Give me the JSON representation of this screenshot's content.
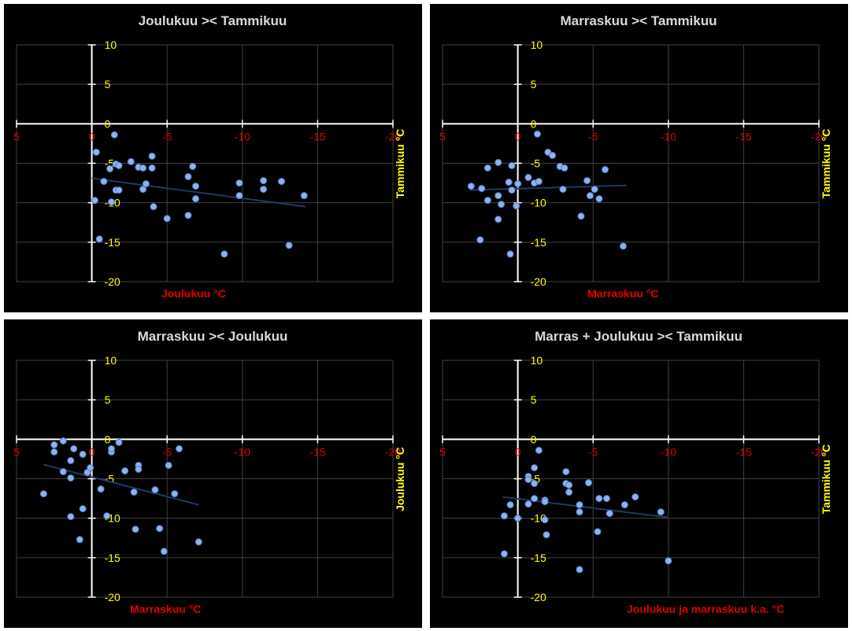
{
  "chart_data": [
    {
      "type": "scatter",
      "title": "Joulukuu >< Tammikuu",
      "xlabel": "Joulukuu °C",
      "ylabel": "Tammikuu °C",
      "xlim": [
        5,
        -20
      ],
      "ylim": [
        -20,
        10
      ],
      "xticks": [
        5,
        0,
        -5,
        -10,
        -15,
        -20
      ],
      "yticks": [
        10,
        5,
        0,
        -5,
        -10,
        -15,
        -20
      ],
      "trendline": {
        "x": [
          0,
          -14.2
        ],
        "y": [
          -6.9,
          -10.5
        ]
      },
      "points": [
        {
          "x": -1.5,
          "y": -1.4
        },
        {
          "x": -0.3,
          "y": -3.6
        },
        {
          "x": -0.8,
          "y": -7.3
        },
        {
          "x": -1.2,
          "y": -5.7
        },
        {
          "x": -1.6,
          "y": -5.1
        },
        {
          "x": -1.8,
          "y": -5.3
        },
        {
          "x": -1.6,
          "y": -8.4
        },
        {
          "x": -1.8,
          "y": -8.4
        },
        {
          "x": -0.2,
          "y": -9.7
        },
        {
          "x": -1.3,
          "y": -9.9
        },
        {
          "x": -2.6,
          "y": -4.8
        },
        {
          "x": -3.1,
          "y": -5.5
        },
        {
          "x": -3.4,
          "y": -5.6
        },
        {
          "x": -3.6,
          "y": -7.6
        },
        {
          "x": -3.4,
          "y": -8.3
        },
        {
          "x": -4.0,
          "y": -4.1
        },
        {
          "x": -4.0,
          "y": -5.6
        },
        {
          "x": -4.1,
          "y": -10.5
        },
        {
          "x": -5.0,
          "y": -12.0
        },
        {
          "x": -0.5,
          "y": -14.6
        },
        {
          "x": -6.4,
          "y": -6.7
        },
        {
          "x": -6.7,
          "y": -5.4
        },
        {
          "x": -6.9,
          "y": -7.9
        },
        {
          "x": -6.9,
          "y": -9.5
        },
        {
          "x": -6.4,
          "y": -11.6
        },
        {
          "x": -8.8,
          "y": -16.5
        },
        {
          "x": -9.8,
          "y": -7.5
        },
        {
          "x": -9.8,
          "y": -9.1
        },
        {
          "x": -11.4,
          "y": -7.2
        },
        {
          "x": -11.4,
          "y": -8.3
        },
        {
          "x": -12.6,
          "y": -7.3
        },
        {
          "x": -13.1,
          "y": -15.4
        },
        {
          "x": -14.1,
          "y": -9.1
        }
      ]
    },
    {
      "type": "scatter",
      "title": "Marraskuu >< Tammikuu",
      "xlabel": "Marraskuu °C",
      "ylabel": "Tammikuu °C",
      "xlim": [
        5,
        -20
      ],
      "ylim": [
        -20,
        10
      ],
      "xticks": [
        5,
        0,
        -5,
        -10,
        -15,
        -20
      ],
      "yticks": [
        10,
        5,
        0,
        -5,
        -10,
        -15,
        -20
      ],
      "trendline": {
        "x": [
          3.2,
          -7.2
        ],
        "y": [
          -8.4,
          -7.8
        ]
      },
      "points": [
        {
          "x": 3.1,
          "y": -7.9
        },
        {
          "x": 2.4,
          "y": -8.2
        },
        {
          "x": 2.5,
          "y": -14.7
        },
        {
          "x": 2.0,
          "y": -5.6
        },
        {
          "x": 2.0,
          "y": -9.7
        },
        {
          "x": 1.3,
          "y": -4.9
        },
        {
          "x": 1.3,
          "y": -9.1
        },
        {
          "x": 1.3,
          "y": -12.1
        },
        {
          "x": 1.1,
          "y": -10.2
        },
        {
          "x": 0.6,
          "y": -7.4
        },
        {
          "x": 0.5,
          "y": -16.5
        },
        {
          "x": 0.4,
          "y": -5.3
        },
        {
          "x": 0.4,
          "y": -8.4
        },
        {
          "x": 0.0,
          "y": -7.6
        },
        {
          "x": 0.1,
          "y": -10.4
        },
        {
          "x": -1.3,
          "y": -1.3
        },
        {
          "x": -0.7,
          "y": -6.8
        },
        {
          "x": -1.1,
          "y": -7.5
        },
        {
          "x": -1.4,
          "y": -7.3
        },
        {
          "x": -2.0,
          "y": -3.6
        },
        {
          "x": -2.3,
          "y": -4.0
        },
        {
          "x": -2.8,
          "y": -5.4
        },
        {
          "x": -3.1,
          "y": -5.6
        },
        {
          "x": -3.1,
          "y": -5.6
        },
        {
          "x": -3.0,
          "y": -8.3
        },
        {
          "x": -4.2,
          "y": -11.7
        },
        {
          "x": -4.6,
          "y": -7.2
        },
        {
          "x": -4.8,
          "y": -9.1
        },
        {
          "x": -5.1,
          "y": -8.3
        },
        {
          "x": -5.4,
          "y": -9.5
        },
        {
          "x": -5.8,
          "y": -5.8
        },
        {
          "x": -7.0,
          "y": -15.5
        }
      ]
    },
    {
      "type": "scatter",
      "title": "Marraskuu >< Joulukuu",
      "xlabel": "Marraskuu °C",
      "ylabel": "Joulukuu °C",
      "xlim": [
        5,
        -20
      ],
      "ylim": [
        -20,
        10
      ],
      "xticks": [
        5,
        0,
        -5,
        -10,
        -15,
        -20
      ],
      "yticks": [
        10,
        5,
        0,
        -5,
        -10,
        -15,
        -20
      ],
      "trendline": {
        "x": [
          3.2,
          -7.1
        ],
        "y": [
          -3.2,
          -8.3
        ]
      },
      "points": [
        {
          "x": 3.2,
          "y": -6.9
        },
        {
          "x": 2.5,
          "y": -0.7
        },
        {
          "x": 2.5,
          "y": -1.6
        },
        {
          "x": 1.9,
          "y": -0.2
        },
        {
          "x": 1.9,
          "y": -4.1
        },
        {
          "x": 1.4,
          "y": -2.7
        },
        {
          "x": 1.4,
          "y": -4.9
        },
        {
          "x": 1.4,
          "y": -9.8
        },
        {
          "x": 1.2,
          "y": -1.2
        },
        {
          "x": 0.6,
          "y": -1.9
        },
        {
          "x": 0.6,
          "y": -8.8
        },
        {
          "x": 0.8,
          "y": -12.7
        },
        {
          "x": 0.3,
          "y": -4.2
        },
        {
          "x": 0.1,
          "y": -3.6
        },
        {
          "x": -0.6,
          "y": -6.3
        },
        {
          "x": -1.0,
          "y": -9.7
        },
        {
          "x": -1.3,
          "y": -1.6
        },
        {
          "x": -1.3,
          "y": -1.2
        },
        {
          "x": -1.8,
          "y": -0.4
        },
        {
          "x": -2.2,
          "y": -4.0
        },
        {
          "x": -2.8,
          "y": -6.7
        },
        {
          "x": -2.9,
          "y": -11.4
        },
        {
          "x": -3.1,
          "y": -3.3
        },
        {
          "x": -3.1,
          "y": -3.8
        },
        {
          "x": -4.2,
          "y": -6.4
        },
        {
          "x": -4.5,
          "y": -11.3
        },
        {
          "x": -4.8,
          "y": -14.2
        },
        {
          "x": -5.1,
          "y": -3.3
        },
        {
          "x": -5.5,
          "y": -6.9
        },
        {
          "x": -5.8,
          "y": -1.2
        },
        {
          "x": -7.1,
          "y": -13.0
        }
      ]
    },
    {
      "type": "scatter",
      "title": "Marras + Joulukuu >< Tammikuu",
      "xlabel": "Joulukuu ja marraskuu k.a. °C",
      "ylabel": "Tammikuu °C",
      "xlim": [
        5,
        -20
      ],
      "ylim": [
        -20,
        10
      ],
      "xticks": [
        5,
        0,
        -5,
        -10,
        -15,
        -20
      ],
      "yticks": [
        10,
        5,
        0,
        -5,
        -10,
        -15,
        -20
      ],
      "trendline": {
        "x": [
          1.0,
          -10.0
        ],
        "y": [
          -7.3,
          -9.9
        ]
      },
      "points": [
        {
          "x": 0.9,
          "y": -9.7
        },
        {
          "x": 0.9,
          "y": -14.5
        },
        {
          "x": 0.5,
          "y": -8.3
        },
        {
          "x": 0.0,
          "y": -10.0
        },
        {
          "x": -0.7,
          "y": -4.7
        },
        {
          "x": -0.7,
          "y": -5.1
        },
        {
          "x": -0.7,
          "y": -8.2
        },
        {
          "x": -1.1,
          "y": -3.6
        },
        {
          "x": -1.1,
          "y": -5.6
        },
        {
          "x": -1.1,
          "y": -7.5
        },
        {
          "x": -1.4,
          "y": -1.4
        },
        {
          "x": -1.8,
          "y": -7.7
        },
        {
          "x": -1.8,
          "y": -7.9
        },
        {
          "x": -1.8,
          "y": -10.2
        },
        {
          "x": -1.9,
          "y": -12.1
        },
        {
          "x": -3.2,
          "y": -4.1
        },
        {
          "x": -3.2,
          "y": -5.6
        },
        {
          "x": -3.4,
          "y": -5.8
        },
        {
          "x": -3.4,
          "y": -6.7
        },
        {
          "x": -4.1,
          "y": -8.3
        },
        {
          "x": -4.1,
          "y": -9.2
        },
        {
          "x": -4.1,
          "y": -16.5
        },
        {
          "x": -4.7,
          "y": -5.5
        },
        {
          "x": -5.3,
          "y": -11.7
        },
        {
          "x": -5.4,
          "y": -7.5
        },
        {
          "x": -5.9,
          "y": -7.5
        },
        {
          "x": -6.1,
          "y": -9.4
        },
        {
          "x": -7.1,
          "y": -8.3
        },
        {
          "x": -7.8,
          "y": -7.3
        },
        {
          "x": -9.5,
          "y": -9.2
        },
        {
          "x": -10.0,
          "y": -15.4
        }
      ]
    }
  ]
}
